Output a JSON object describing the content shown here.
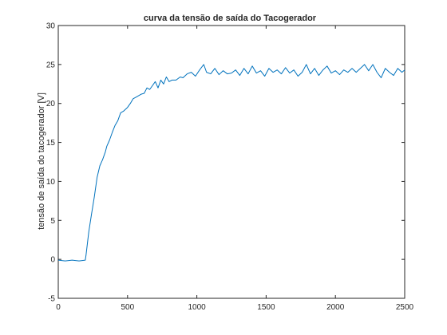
{
  "chart_data": {
    "type": "line",
    "title": "curva da tensão de saída do Tacogerador",
    "xlabel": "",
    "ylabel": "tensão de saída do tacogerador [V]",
    "xlim": [
      0,
      2500
    ],
    "ylim": [
      -5,
      30
    ],
    "xticks": [
      0,
      500,
      1000,
      1500,
      2000,
      2500
    ],
    "yticks": [
      -5,
      0,
      5,
      10,
      15,
      20,
      25,
      30
    ],
    "xtick_labels": [
      "0",
      "500",
      "1000",
      "1500",
      "2000",
      "2500"
    ],
    "ytick_labels": [
      "-5",
      "0",
      "5",
      "10",
      "15",
      "20",
      "25",
      "30"
    ],
    "grid": false,
    "color": "#0072BD",
    "series": [
      {
        "x": [
          0,
          50,
          100,
          150,
          195,
          200,
          210,
          220,
          240,
          260,
          280,
          300,
          320,
          340,
          350,
          370,
          390,
          410,
          430,
          450,
          470,
          500,
          520,
          540,
          560,
          580,
          600,
          620,
          640,
          660,
          680,
          700,
          720,
          740,
          760,
          780,
          800,
          820,
          850,
          880,
          900,
          930,
          960,
          990,
          1020,
          1050,
          1070,
          1100,
          1130,
          1160,
          1190,
          1220,
          1250,
          1280,
          1310,
          1340,
          1370,
          1400,
          1430,
          1460,
          1490,
          1520,
          1550,
          1580,
          1610,
          1640,
          1670,
          1700,
          1730,
          1760,
          1790,
          1820,
          1850,
          1880,
          1910,
          1940,
          1970,
          2000,
          2030,
          2060,
          2090,
          2120,
          2150,
          2180,
          2210,
          2240,
          2270,
          2300,
          2330,
          2360,
          2390,
          2420,
          2450,
          2480,
          2500
        ],
        "y": [
          -0.1,
          -0.2,
          -0.1,
          -0.2,
          -0.1,
          0.5,
          2.0,
          3.5,
          5.8,
          8.0,
          10.5,
          12.0,
          12.8,
          13.8,
          14.5,
          15.3,
          16.3,
          17.2,
          17.8,
          18.8,
          19.0,
          19.5,
          20.0,
          20.6,
          20.8,
          21.0,
          21.2,
          21.3,
          22.0,
          21.8,
          22.3,
          22.8,
          22.0,
          23.0,
          22.5,
          23.4,
          22.8,
          23.0,
          23.0,
          23.4,
          23.3,
          23.8,
          24.0,
          23.5,
          24.3,
          25.0,
          24.0,
          23.8,
          24.5,
          23.7,
          24.2,
          23.8,
          23.9,
          24.3,
          23.6,
          24.5,
          23.8,
          24.8,
          23.9,
          24.2,
          23.5,
          24.5,
          24.0,
          24.3,
          23.8,
          24.6,
          23.9,
          24.3,
          23.5,
          24.0,
          25.0,
          23.8,
          24.5,
          23.6,
          24.3,
          24.8,
          23.9,
          24.2,
          23.7,
          24.3,
          24.0,
          24.5,
          24.0,
          24.5,
          25.0,
          24.2,
          25.0,
          24.0,
          23.3,
          24.5,
          24.0,
          23.6,
          24.5,
          24.0,
          24.3
        ]
      }
    ]
  }
}
